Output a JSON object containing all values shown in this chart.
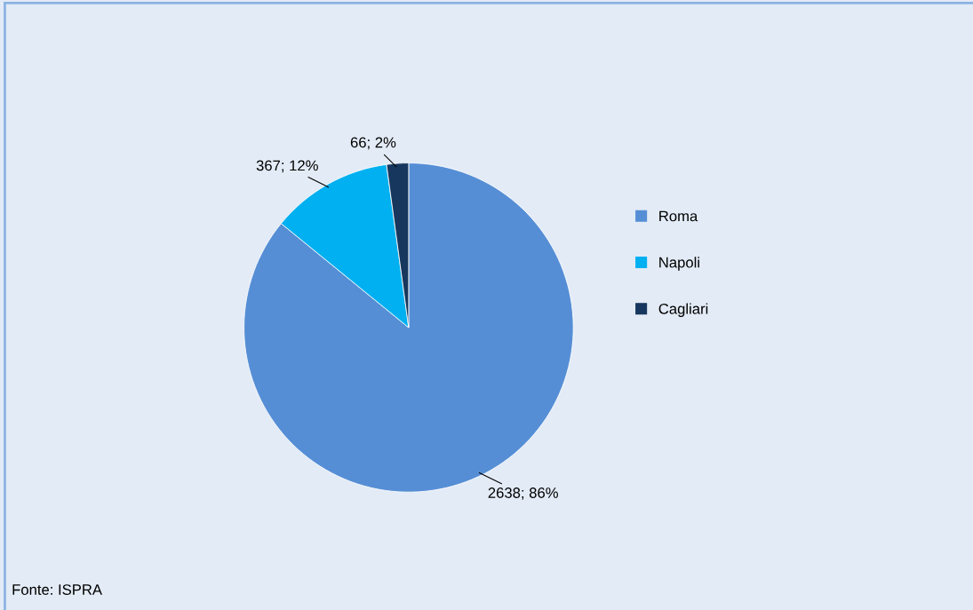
{
  "chart_data": {
    "type": "pie",
    "categories": [
      "Roma",
      "Napoli",
      "Cagliari"
    ],
    "values": [
      2638,
      367,
      66
    ],
    "colors": [
      "#558ed5",
      "#00b0f0",
      "#17375e"
    ],
    "value_labels": [
      "2638; 86%",
      "367; 12%",
      "66; 2%"
    ],
    "legend": "right",
    "annotations": [
      "Fonte: ISPRA"
    ]
  }
}
